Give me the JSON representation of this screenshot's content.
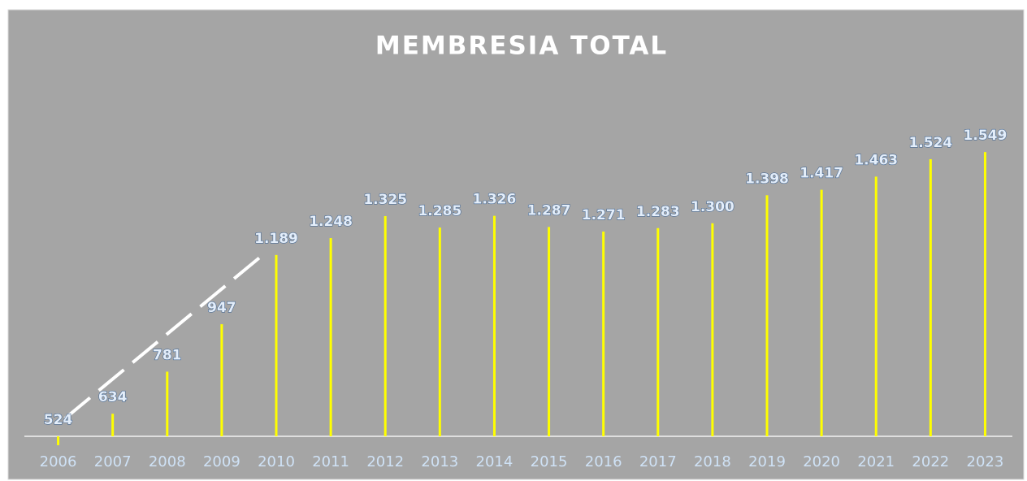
{
  "chart_data": {
    "type": "bar",
    "title": "MEMBRESIA TOTAL",
    "categories": [
      "2006",
      "2007",
      "2008",
      "2009",
      "2010",
      "2011",
      "2012",
      "2013",
      "2014",
      "2015",
      "2016",
      "2017",
      "2018",
      "2019",
      "2020",
      "2021",
      "2022",
      "2023"
    ],
    "values": [
      524,
      634,
      781,
      947,
      1189,
      1248,
      1325,
      1285,
      1326,
      1287,
      1271,
      1283,
      1300,
      1398,
      1417,
      1463,
      1524,
      1549
    ],
    "value_labels": [
      "524",
      "634",
      "781",
      "947",
      "1.189",
      "1.248",
      "1.325",
      "1.285",
      "1.326",
      "1.287",
      "1.271",
      "1.283",
      "1.300",
      "1.398",
      "1.417",
      "1.463",
      "1.524",
      "1.549"
    ],
    "color": "#ffff00",
    "ylim": [
      555,
      1700
    ]
  }
}
